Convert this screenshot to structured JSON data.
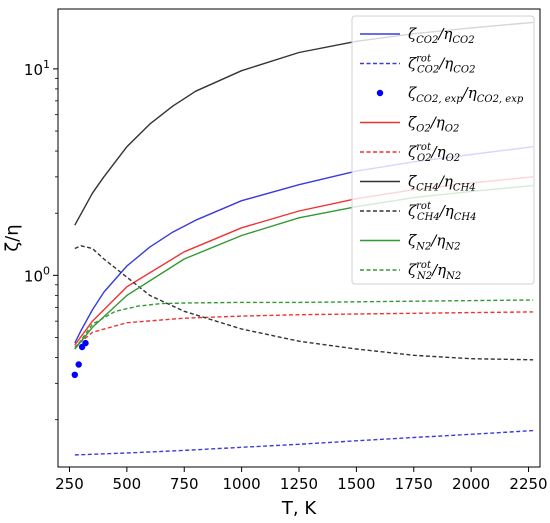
{
  "chart_data": {
    "type": "line",
    "xlabel": "T, K",
    "ylabel": "ζ/η",
    "title": "",
    "y_scale": "log",
    "xlim": [
      200,
      2300
    ],
    "ylim": [
      0.118,
      19.5
    ],
    "x_ticks": [
      "250",
      "500",
      "750",
      "1000",
      "1250",
      "1500",
      "1750",
      "2000",
      "2250"
    ],
    "y_ticks": [
      {
        "value": 1,
        "label": "10⁰"
      },
      {
        "value": 10,
        "label": "10¹"
      }
    ],
    "grid": false,
    "legend_position": "top-right",
    "series": [
      {
        "name": "ζCO2/ηCO2",
        "name_base": "ζ",
        "name_sub1": "CO2",
        "name_mid": "/η",
        "name_sub2": "CO2",
        "color": "#3b3bdb",
        "style": "solid",
        "marker": "none",
        "x": [
          273,
          300,
          350,
          400,
          500,
          600,
          700,
          800,
          1000,
          1250,
          1500,
          1750,
          2000,
          2270
        ],
        "y": [
          0.47,
          0.54,
          0.68,
          0.83,
          1.11,
          1.37,
          1.62,
          1.85,
          2.3,
          2.75,
          3.2,
          3.55,
          3.85,
          4.2
        ]
      },
      {
        "name": "ζrotCO2/ηCO2",
        "name_base": "ζ",
        "name_sup": "rot",
        "name_sub1": "CO2",
        "name_mid": "/η",
        "name_sub2": "CO2",
        "color": "#3b3bdb",
        "style": "dashed",
        "marker": "none",
        "x": [
          273,
          500,
          750,
          1000,
          1250,
          1500,
          1750,
          2000,
          2270
        ],
        "y": [
          0.135,
          0.138,
          0.142,
          0.147,
          0.152,
          0.158,
          0.164,
          0.17,
          0.177
        ]
      },
      {
        "name": "ζCO2,exp/ηCO2,exp",
        "name_base": "ζ",
        "name_sub1": "CO2, exp",
        "name_mid": "/η",
        "name_sub2": "CO2, exp",
        "color": "#0000ff",
        "style": "none",
        "marker": "dot",
        "x": [
          273,
          290,
          305,
          320
        ],
        "y": [
          0.33,
          0.37,
          0.45,
          0.47
        ]
      },
      {
        "name": "ζO2/ηO2",
        "name_base": "ζ",
        "name_sub1": "O2",
        "name_mid": "/η",
        "name_sub2": "O2",
        "color": "#ee3333",
        "style": "solid",
        "marker": "none",
        "x": [
          273,
          350,
          500,
          750,
          1000,
          1250,
          1500,
          1750,
          2000,
          2270
        ],
        "y": [
          0.46,
          0.6,
          0.88,
          1.3,
          1.7,
          2.05,
          2.35,
          2.6,
          2.8,
          3.0
        ]
      },
      {
        "name": "ζrotO2/ηO2",
        "name_base": "ζ",
        "name_sup": "rot",
        "name_sub1": "O2",
        "name_mid": "/η",
        "name_sub2": "O2",
        "color": "#ee3333",
        "style": "dashed",
        "marker": "none",
        "x": [
          273,
          350,
          500,
          750,
          1000,
          1250,
          1500,
          1750,
          2000,
          2270
        ],
        "y": [
          0.45,
          0.53,
          0.59,
          0.62,
          0.635,
          0.645,
          0.65,
          0.655,
          0.66,
          0.665
        ]
      },
      {
        "name": "ζCH4/ηCH4",
        "name_base": "ζ",
        "name_sub1": "CH4",
        "name_mid": "/η",
        "name_sub2": "CH4",
        "color": "#333333",
        "style": "solid",
        "marker": "none",
        "x": [
          273,
          350,
          400,
          500,
          600,
          700,
          800,
          1000,
          1250,
          1500,
          1750,
          2000,
          2270
        ],
        "y": [
          1.75,
          2.5,
          3.0,
          4.2,
          5.4,
          6.6,
          7.8,
          9.8,
          12.0,
          13.6,
          14.8,
          15.8,
          16.8
        ]
      },
      {
        "name": "ζrotCH4/ηCH4",
        "name_base": "ζ",
        "name_sup": "rot",
        "name_sub1": "CH4",
        "name_mid": "/η",
        "name_sub2": "CH4",
        "color": "#333333",
        "style": "dashed",
        "marker": "none",
        "x": [
          273,
          300,
          350,
          400,
          500,
          600,
          750,
          1000,
          1250,
          1500,
          1750,
          2000,
          2270
        ],
        "y": [
          1.35,
          1.39,
          1.35,
          1.2,
          0.98,
          0.8,
          0.67,
          0.55,
          0.48,
          0.44,
          0.41,
          0.395,
          0.39
        ]
      },
      {
        "name": "ζN2/ηN2",
        "name_base": "ζ",
        "name_sub1": "N2",
        "name_mid": "/η",
        "name_sub2": "N2",
        "color": "#339933",
        "style": "solid",
        "marker": "none",
        "x": [
          273,
          350,
          500,
          750,
          1000,
          1250,
          1500,
          1750,
          2000,
          2270
        ],
        "y": [
          0.44,
          0.56,
          0.8,
          1.2,
          1.56,
          1.9,
          2.15,
          2.38,
          2.55,
          2.72
        ]
      },
      {
        "name": "ζrotN2/ηN2",
        "name_base": "ζ",
        "name_sup": "rot",
        "name_sub1": "N2",
        "name_mid": "/η",
        "name_sub2": "N2",
        "color": "#339933",
        "style": "dashed",
        "marker": "none",
        "x": [
          273,
          350,
          450,
          550,
          650,
          750,
          1000,
          1250,
          1500,
          1750,
          2000,
          2270
        ],
        "y": [
          0.44,
          0.58,
          0.67,
          0.71,
          0.73,
          0.735,
          0.74,
          0.74,
          0.745,
          0.75,
          0.755,
          0.76
        ]
      }
    ]
  }
}
